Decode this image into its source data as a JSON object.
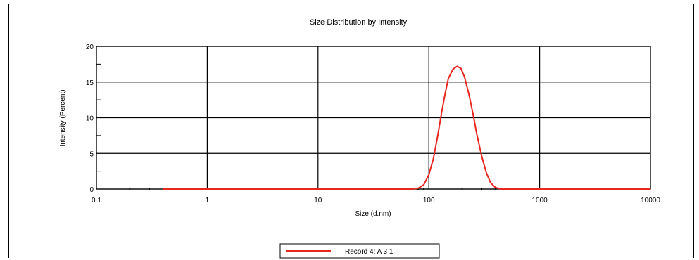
{
  "chart_data": {
    "type": "line",
    "title": "Size Distribution by Intensity",
    "xlabel": "Size (d.nm)",
    "ylabel": "Intensity (Percent)",
    "x_scale": "log",
    "xlim": [
      0.1,
      10000
    ],
    "ylim": [
      0,
      20
    ],
    "x_ticks": [
      "0.1",
      "1",
      "10",
      "100",
      "1000",
      "10000"
    ],
    "y_ticks": [
      "0",
      "5",
      "10",
      "15",
      "20"
    ],
    "grid": true,
    "legend_position": "bottom-center",
    "series": [
      {
        "name": "Record 4: A 3 1",
        "color": "#e8271f",
        "x": [
          0.4,
          1,
          10,
          70,
          80,
          90,
          100,
          110,
          120,
          130,
          140,
          150,
          165,
          180,
          195,
          210,
          230,
          250,
          270,
          300,
          330,
          360,
          400,
          450,
          1000,
          10000
        ],
        "y": [
          0,
          0,
          0,
          0,
          0.1,
          0.6,
          2.0,
          4.3,
          7.4,
          10.6,
          13.3,
          15.5,
          16.8,
          17.2,
          16.9,
          15.7,
          13.3,
          10.6,
          7.8,
          4.6,
          2.3,
          0.9,
          0.2,
          0,
          0,
          0
        ]
      }
    ]
  }
}
